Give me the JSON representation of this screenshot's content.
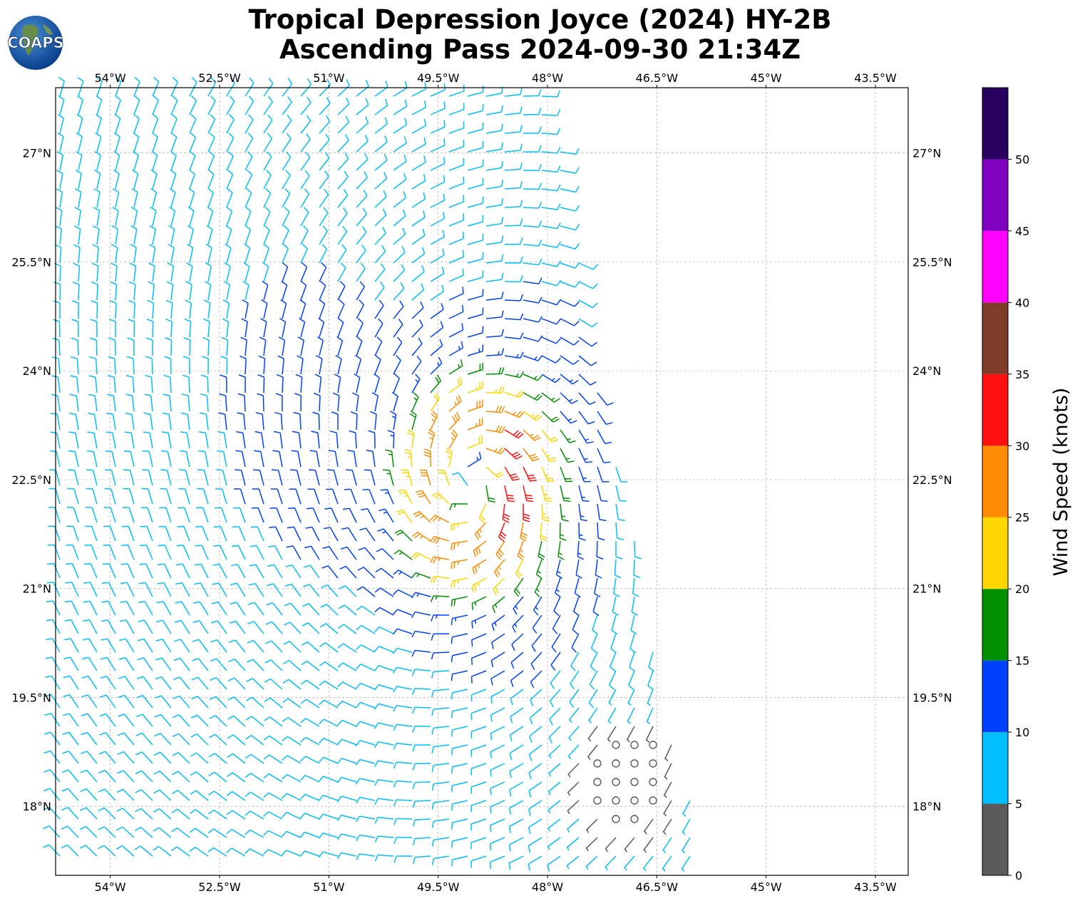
{
  "title": {
    "line1": "Tropical Depression Joyce (2024) HY-2B",
    "line2": "Ascending Pass 2024-09-30 21:34Z"
  },
  "logo": {
    "text": "COAPS"
  },
  "map": {
    "lon_ticks": [
      "54°W",
      "52.5°W",
      "51°W",
      "49.5°W",
      "48°W",
      "46.5°W",
      "45°W",
      "43.5°W"
    ],
    "lat_ticks": [
      "27°N",
      "25.5°N",
      "24°N",
      "22.5°N",
      "21°N",
      "19.5°N",
      "18°N"
    ],
    "lon_values": [
      -54,
      -52.5,
      -51,
      -49.5,
      -48,
      -46.5,
      -45,
      -43.5
    ],
    "lat_values": [
      27,
      25.5,
      24,
      22.5,
      21,
      19.5,
      18
    ],
    "extent": {
      "lon": [
        -54.75,
        -43.05
      ],
      "lat": [
        17.05,
        27.9
      ]
    },
    "storm_center": {
      "lon": -49.05,
      "lat": 22.45
    },
    "swath_east_edge": [
      {
        "lat": 27.9,
        "lon": -48.0
      },
      {
        "lat": 26.0,
        "lon": -47.6
      },
      {
        "lat": 24.5,
        "lon": -47.5
      },
      {
        "lat": 22.5,
        "lon": -47.0
      },
      {
        "lat": 21.0,
        "lon": -46.6
      },
      {
        "lat": 19.5,
        "lon": -46.5
      },
      {
        "lat": 18.0,
        "lon": -46.0
      },
      {
        "lat": 17.1,
        "lon": -45.9
      }
    ]
  },
  "colorbar": {
    "label": "Wind Speed (knots)",
    "tick_values": [
      0,
      5,
      10,
      15,
      20,
      25,
      30,
      35,
      40,
      45,
      50
    ],
    "tick_labels": [
      "0",
      "5",
      "10",
      "15",
      "20",
      "25",
      "30",
      "35",
      "40",
      "45",
      "50"
    ],
    "bins": [
      {
        "min": 0,
        "max": 5,
        "color": "#5a5a5a"
      },
      {
        "min": 5,
        "max": 10,
        "color": "#00bfff"
      },
      {
        "min": 10,
        "max": 15,
        "color": "#0040ff"
      },
      {
        "min": 15,
        "max": 20,
        "color": "#009000"
      },
      {
        "min": 20,
        "max": 25,
        "color": "#ffd700"
      },
      {
        "min": 25,
        "max": 30,
        "color": "#ff8c00"
      },
      {
        "min": 30,
        "max": 35,
        "color": "#ff1010"
      },
      {
        "min": 35,
        "max": 40,
        "color": "#7f3c28"
      },
      {
        "min": 40,
        "max": 45,
        "color": "#ff00ff"
      },
      {
        "min": 45,
        "max": 50,
        "color": "#8000c0"
      },
      {
        "min": 50,
        "max": 55,
        "color": "#280060"
      }
    ]
  }
}
